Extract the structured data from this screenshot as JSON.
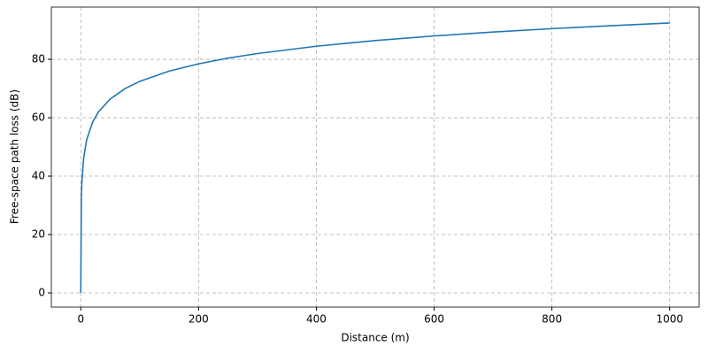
{
  "chart_data": {
    "type": "line",
    "x_label": "Distance (m)",
    "y_label": "Free-space path loss (dB)",
    "x": [
      0,
      1,
      2,
      5,
      10,
      20,
      30,
      50,
      75,
      100,
      150,
      200,
      250,
      300,
      400,
      500,
      600,
      700,
      800,
      900,
      1000
    ],
    "values": [
      0,
      32.45,
      38.47,
      46.43,
      52.45,
      58.47,
      61.99,
      66.43,
      69.95,
      72.45,
      75.97,
      78.47,
      80.41,
      81.99,
      84.49,
      86.43,
      88.01,
      89.35,
      90.51,
      91.53,
      92.45
    ],
    "color": "#1f77b4",
    "xlim": [
      -50,
      1050
    ],
    "ylim": [
      -4.85,
      97.9
    ],
    "xticks": [
      0,
      200,
      400,
      600,
      800,
      1000
    ],
    "yticks": [
      0,
      20,
      40,
      60,
      80
    ],
    "grid": true
  }
}
